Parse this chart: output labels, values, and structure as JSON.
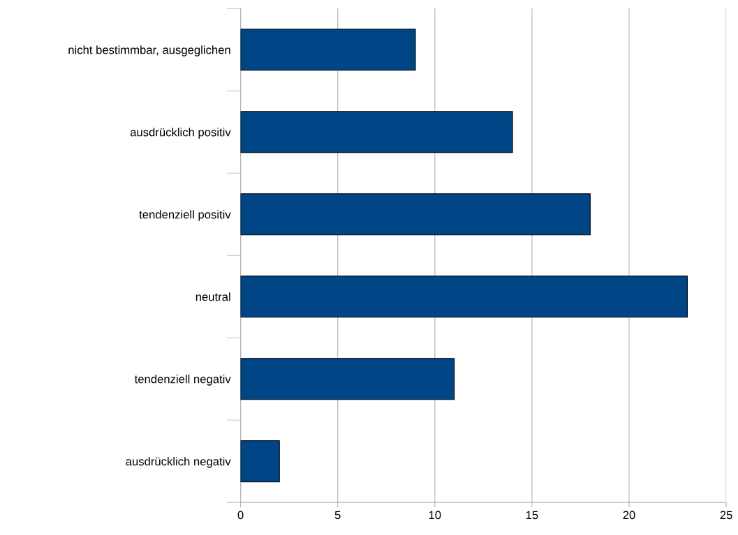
{
  "chart_data": {
    "type": "bar",
    "orientation": "horizontal",
    "categories": [
      "nicht bestimmbar, ausgeglichen",
      "ausdrücklich positiv",
      "tendenziell positiv",
      "neutral",
      "tendenziell negativ",
      "ausdrücklich negativ"
    ],
    "values": [
      9,
      14,
      18,
      23,
      11,
      2
    ],
    "color": "#004586",
    "xlim": [
      0,
      25
    ],
    "xticks": [
      0,
      5,
      10,
      15,
      20,
      25
    ],
    "grid": "x",
    "legend": false
  }
}
